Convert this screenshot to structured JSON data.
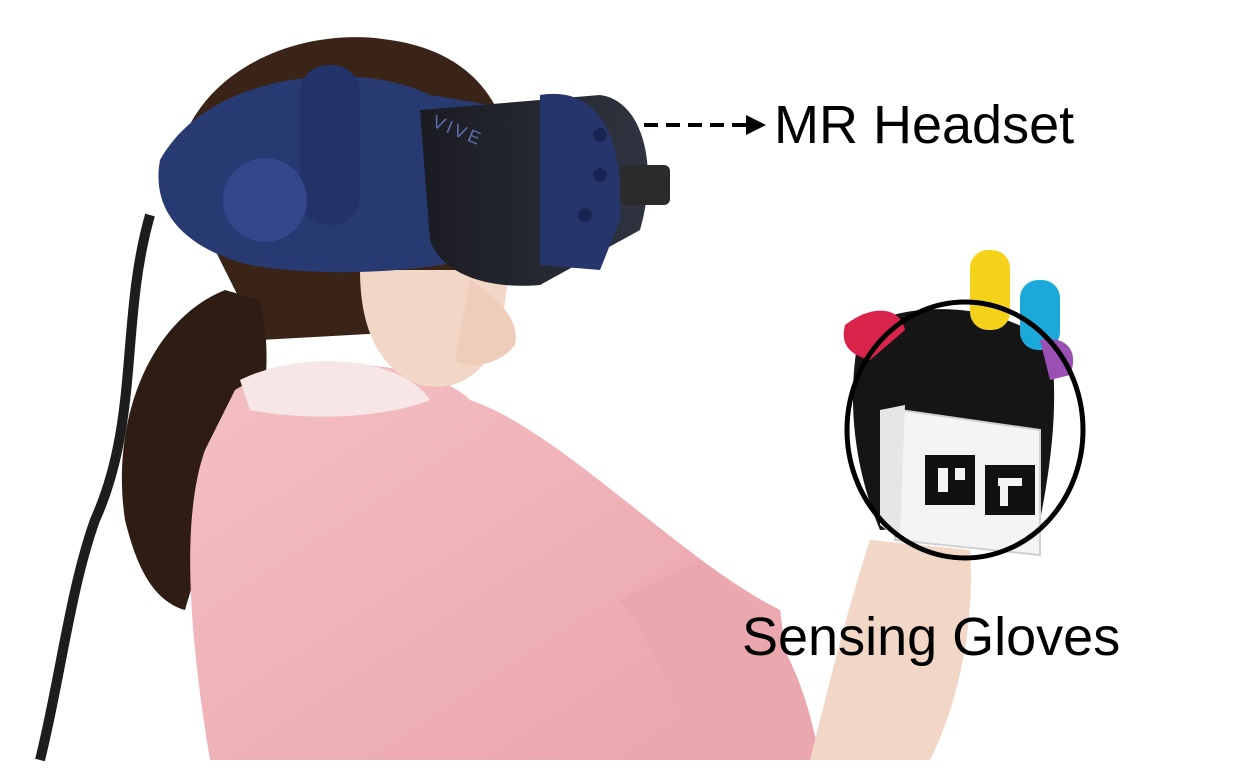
{
  "annotations": {
    "headset": "MR Headset",
    "gloves": "Sensing Gloves"
  },
  "headset_brand": "VIVE",
  "icons": {
    "headset_pointer": "dashed-arrow-right-icon",
    "glove_highlight": "circle-outline-icon"
  },
  "colors": {
    "background": "#ffffff",
    "hoodie": "#f0b2b7",
    "headset": "#283a72",
    "hair": "#3a2418",
    "skin": "#f2d6c6",
    "glove": "#151515",
    "finger_yellow": "#f5d21a",
    "finger_cyan": "#1aa9d9",
    "finger_red": "#d8244a",
    "finger_purple": "#9a4fb3",
    "annotation": "#000000"
  }
}
